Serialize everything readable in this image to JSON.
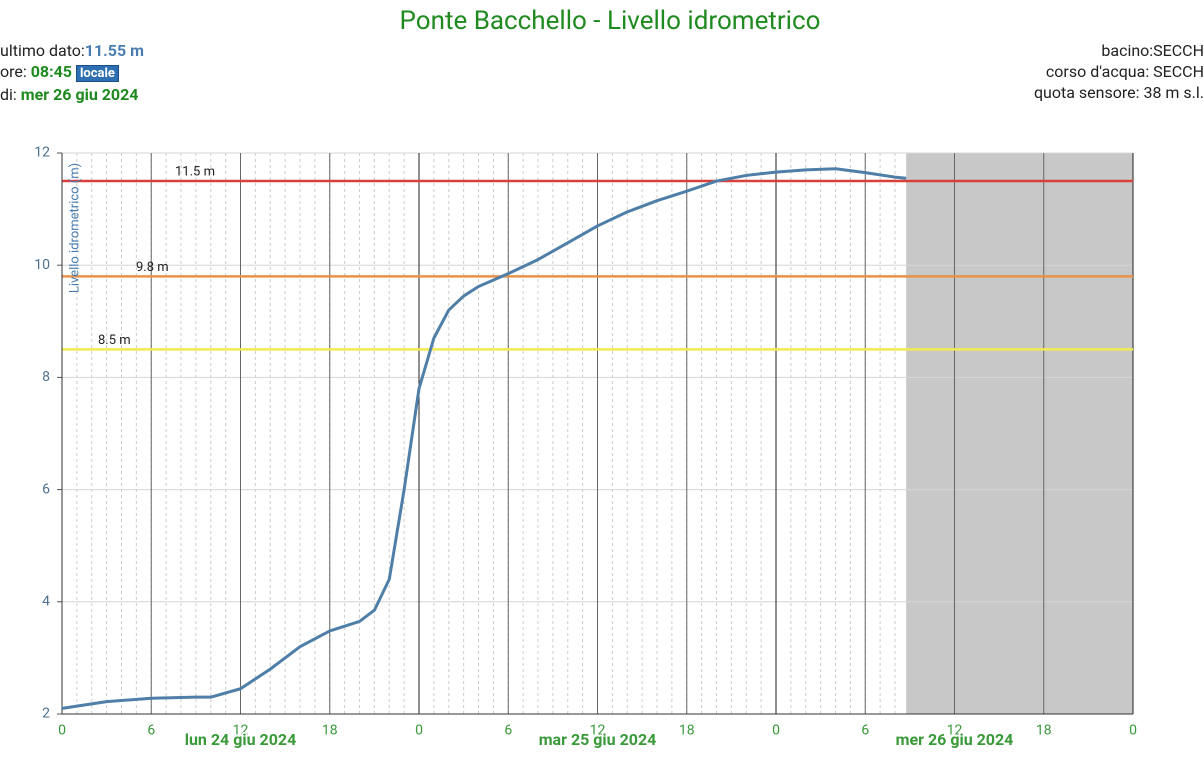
{
  "header": {
    "latest_label": "ultimo dato:",
    "latest_value": "11.55 m",
    "time_label": "ore: ",
    "time_value": "08:45",
    "time_badge": "locale",
    "date_label": "di: ",
    "date_value": "mer 26 giu 2024",
    "basin": "bacino:SECCH",
    "river": "corso d'acqua: SECCH",
    "sensor": "quota sensore: 38 m s.l."
  },
  "chart_data": {
    "type": "line",
    "title": "Ponte Bacchello - Livello idrometrico",
    "y_label": "Livello idrometrico (m)",
    "x": [
      0,
      3,
      6,
      9,
      10,
      12,
      14,
      16,
      18,
      20,
      21,
      22,
      22.5,
      23,
      24,
      25,
      26,
      27,
      28,
      30,
      32,
      34,
      36,
      38,
      40,
      42,
      44,
      46,
      48,
      50,
      52,
      54,
      56,
      56.75
    ],
    "series": [
      {
        "name": "Livello idrometrico",
        "color": "#4f7fa8",
        "values": [
          2.1,
          2.22,
          2.28,
          2.3,
          2.3,
          2.45,
          2.8,
          3.2,
          3.48,
          3.65,
          3.85,
          4.4,
          5.2,
          6.0,
          7.8,
          8.7,
          9.2,
          9.45,
          9.62,
          9.85,
          10.1,
          10.4,
          10.7,
          10.95,
          11.15,
          11.32,
          11.5,
          11.6,
          11.66,
          11.7,
          11.72,
          11.65,
          11.57,
          11.55
        ]
      }
    ],
    "thresholds": [
      {
        "value": 11.5,
        "label": "11.5 m",
        "color": "#d9403a"
      },
      {
        "value": 9.8,
        "label": "9.8 m",
        "color": "#e8924a"
      },
      {
        "value": 8.5,
        "label": "8.5 m",
        "color": "#f0ea50"
      }
    ],
    "shade_from": 56.75,
    "xlim": [
      0,
      72
    ],
    "xticks": [
      0,
      6,
      12,
      18,
      {
        "value": 24,
        "label": "0"
      },
      {
        "value": 30,
        "label": "6"
      },
      {
        "value": 36,
        "label": "12"
      },
      {
        "value": 42,
        "label": "18"
      },
      {
        "value": 48,
        "label": "0"
      },
      {
        "value": 54,
        "label": "6"
      },
      {
        "value": 60,
        "label": "12"
      },
      {
        "value": 66,
        "label": "18"
      },
      {
        "value": 72,
        "label": "0"
      }
    ],
    "day_labels": [
      {
        "value": 12,
        "label": "lun 24 giu 2024"
      },
      {
        "value": 36,
        "label": "mar 25 giu 2024"
      },
      {
        "value": 60,
        "label": "mer 26 giu 2024"
      }
    ],
    "ylim": [
      2,
      12
    ],
    "yticks": [
      2,
      4,
      6,
      8,
      10,
      12
    ],
    "grid": true
  }
}
